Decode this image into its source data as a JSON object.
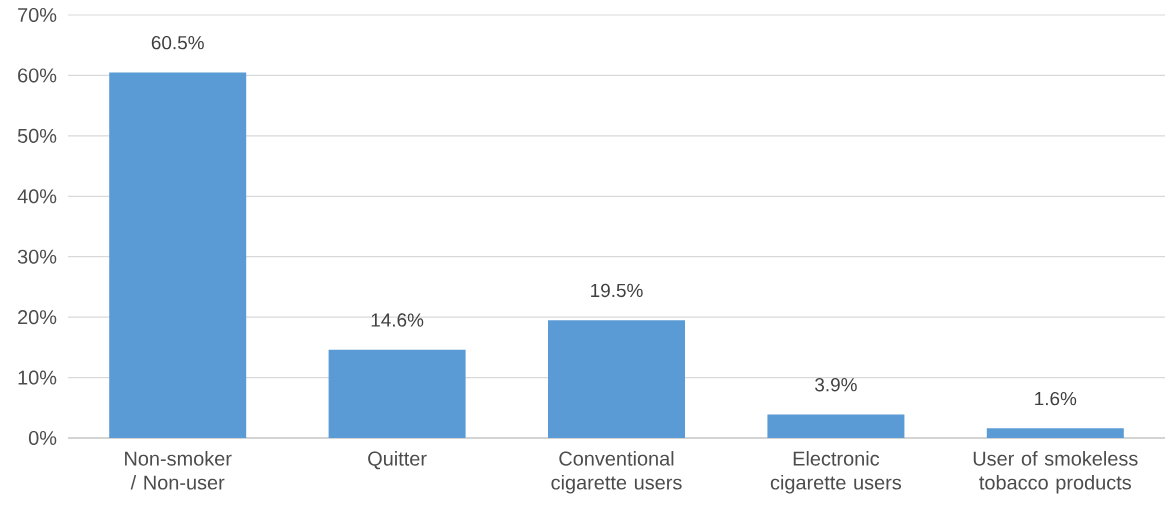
{
  "chart_data": {
    "type": "bar",
    "categories": [
      "Non-smoker / Non-user",
      "Quitter",
      "Conventional cigarette users",
      "Electronic cigarette users",
      "User of smokeless tobacco products"
    ],
    "values": [
      60.5,
      14.6,
      19.5,
      3.9,
      1.6
    ],
    "value_labels": [
      "60.5%",
      "14.6%",
      "19.5%",
      "3.9%",
      "1.6%"
    ],
    "color": "#5b9bd5",
    "ylim": [
      0,
      70
    ],
    "yticks": [
      {
        "value": 0,
        "label": "0%"
      },
      {
        "value": 10,
        "label": "10%"
      },
      {
        "value": 20,
        "label": "20%"
      },
      {
        "value": 30,
        "label": "30%"
      },
      {
        "value": 40,
        "label": "40%"
      },
      {
        "value": 50,
        "label": "50%"
      },
      {
        "value": 60,
        "label": "60%"
      },
      {
        "value": 70,
        "label": "70%"
      }
    ],
    "grid": "y"
  }
}
